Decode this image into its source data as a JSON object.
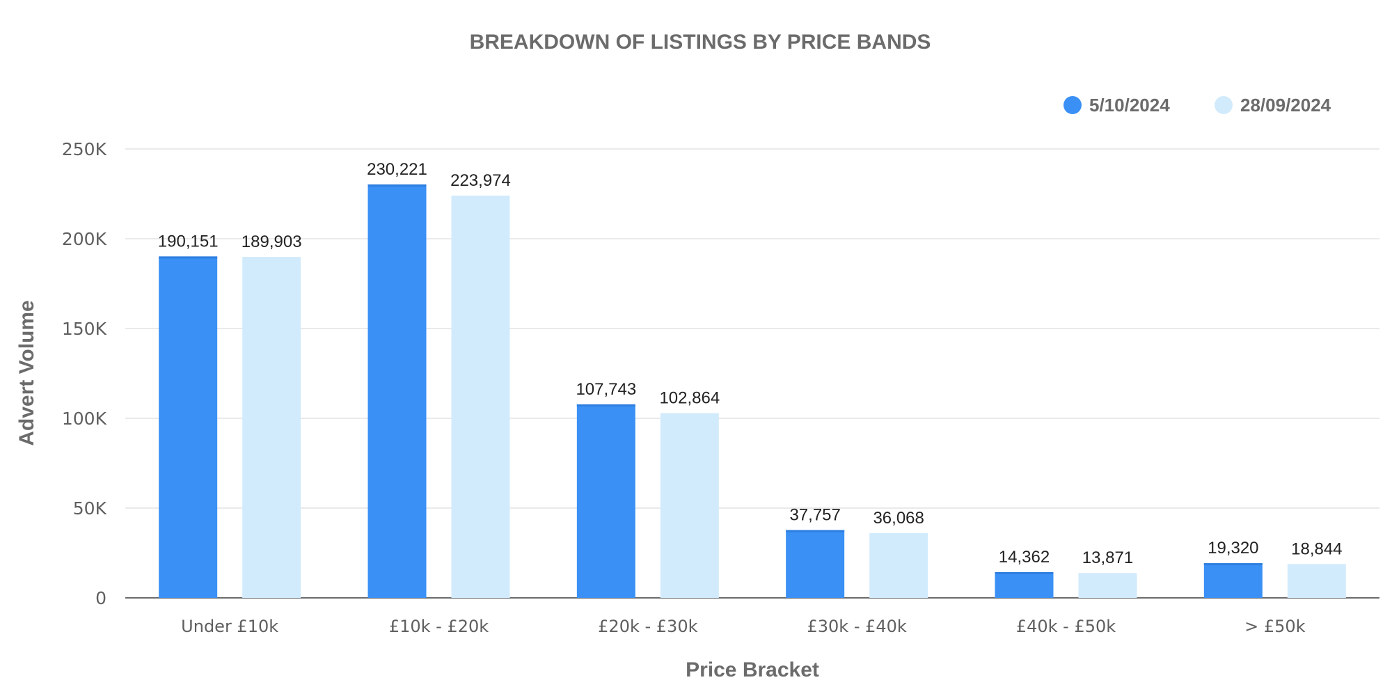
{
  "chart_data": {
    "type": "bar",
    "title": "BREAKDOWN OF LISTINGS BY PRICE BANDS",
    "xlabel": "Price Bracket",
    "ylabel": "Advert Volume",
    "categories": [
      "Under £10k",
      "£10k - £20k",
      "£20k - £30k",
      "£30k - £40k",
      "£40k - £50k",
      "> £50k"
    ],
    "series": [
      {
        "name": "5/10/2024",
        "color": "#3a90f5",
        "values": [
          190151,
          230221,
          107743,
          37757,
          14362,
          19320
        ],
        "labels": [
          "190,151",
          "230,221",
          "107,743",
          "37,757",
          "14,362",
          "19,320"
        ]
      },
      {
        "name": "28/09/2024",
        "color": "#d2ebfc",
        "values": [
          189903,
          223974,
          102864,
          36068,
          13871,
          18844
        ],
        "labels": [
          "189,903",
          "223,974",
          "102,864",
          "36,068",
          "13,871",
          "18,844"
        ]
      }
    ],
    "ylim": [
      0,
      250000
    ],
    "yticks": [
      0,
      50000,
      100000,
      150000,
      200000,
      250000
    ],
    "ytick_labels": [
      "0",
      "50K",
      "100K",
      "150K",
      "200K",
      "250K"
    ],
    "grid": true,
    "legend_position": "top-right"
  }
}
